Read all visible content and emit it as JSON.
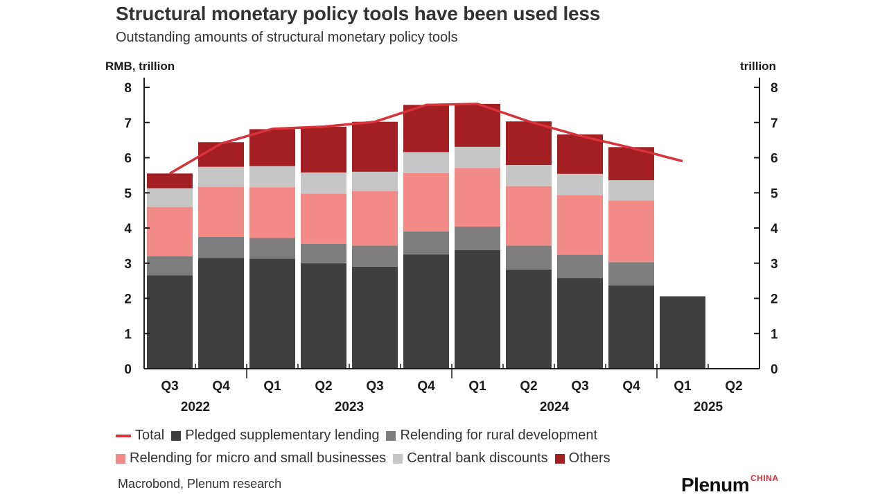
{
  "header": {
    "title": "Structural monetary policy tools have been used less",
    "subtitle": "Outstanding amounts of structural monetary policy tools"
  },
  "axes": {
    "left_unit": "RMB, trillion",
    "right_unit": "trillion"
  },
  "legend": {
    "total": "Total",
    "psl": "Pledged supplementary lending",
    "rural": "Relending for rural development",
    "micro": "Relending for micro and small businesses",
    "discounts": "Central bank discounts",
    "others": "Others"
  },
  "footer": {
    "source": "Macrobond, Plenum research",
    "logo": "Plenum",
    "logo_tag": "CHINA"
  },
  "colors": {
    "psl": "#3f3f3f",
    "rural": "#7d7d7d",
    "micro": "#f28b88",
    "discounts": "#c6c6c6",
    "others": "#a31f21",
    "total": "#d8323a"
  },
  "chart_data": {
    "type": "bar",
    "stacked": true,
    "categories": [
      "Q3",
      "Q4",
      "Q1",
      "Q2",
      "Q3",
      "Q4",
      "Q1",
      "Q2",
      "Q3",
      "Q4",
      "Q1",
      "Q2"
    ],
    "years": [
      {
        "label": "2022",
        "span": [
          0,
          1
        ]
      },
      {
        "label": "2023",
        "span": [
          2,
          5
        ]
      },
      {
        "label": "2024",
        "span": [
          6,
          9
        ]
      },
      {
        "label": "2025",
        "span": [
          10,
          11
        ]
      }
    ],
    "ylim": [
      0,
      8
    ],
    "yticks": [
      0,
      1,
      2,
      3,
      4,
      5,
      6,
      7,
      8
    ],
    "series": [
      {
        "name": "Pledged supplementary lending",
        "key": "psl",
        "values": [
          2.65,
          3.15,
          3.13,
          3.0,
          2.9,
          3.25,
          3.37,
          2.82,
          2.58,
          2.37,
          2.06,
          null
        ]
      },
      {
        "name": "Relending for rural development",
        "key": "rural",
        "values": [
          0.55,
          0.6,
          0.59,
          0.55,
          0.6,
          0.65,
          0.67,
          0.68,
          0.66,
          0.66,
          null,
          null
        ]
      },
      {
        "name": "Relending for micro and small businesses",
        "key": "micro",
        "values": [
          1.4,
          1.42,
          1.44,
          1.43,
          1.55,
          1.66,
          1.67,
          1.69,
          1.7,
          1.75,
          null,
          null
        ]
      },
      {
        "name": "Central bank discounts",
        "key": "discounts",
        "values": [
          0.53,
          0.57,
          0.6,
          0.6,
          0.55,
          0.6,
          0.6,
          0.6,
          0.6,
          0.58,
          null,
          null
        ]
      },
      {
        "name": "Others",
        "key": "others",
        "values": [
          0.42,
          0.7,
          1.05,
          1.3,
          1.42,
          1.34,
          1.22,
          1.24,
          1.12,
          0.94,
          null,
          null
        ]
      }
    ],
    "total": {
      "name": "Total",
      "values": [
        5.55,
        6.4,
        6.82,
        6.88,
        7.02,
        7.5,
        7.53,
        7.03,
        6.62,
        6.28,
        5.9,
        null
      ]
    }
  }
}
